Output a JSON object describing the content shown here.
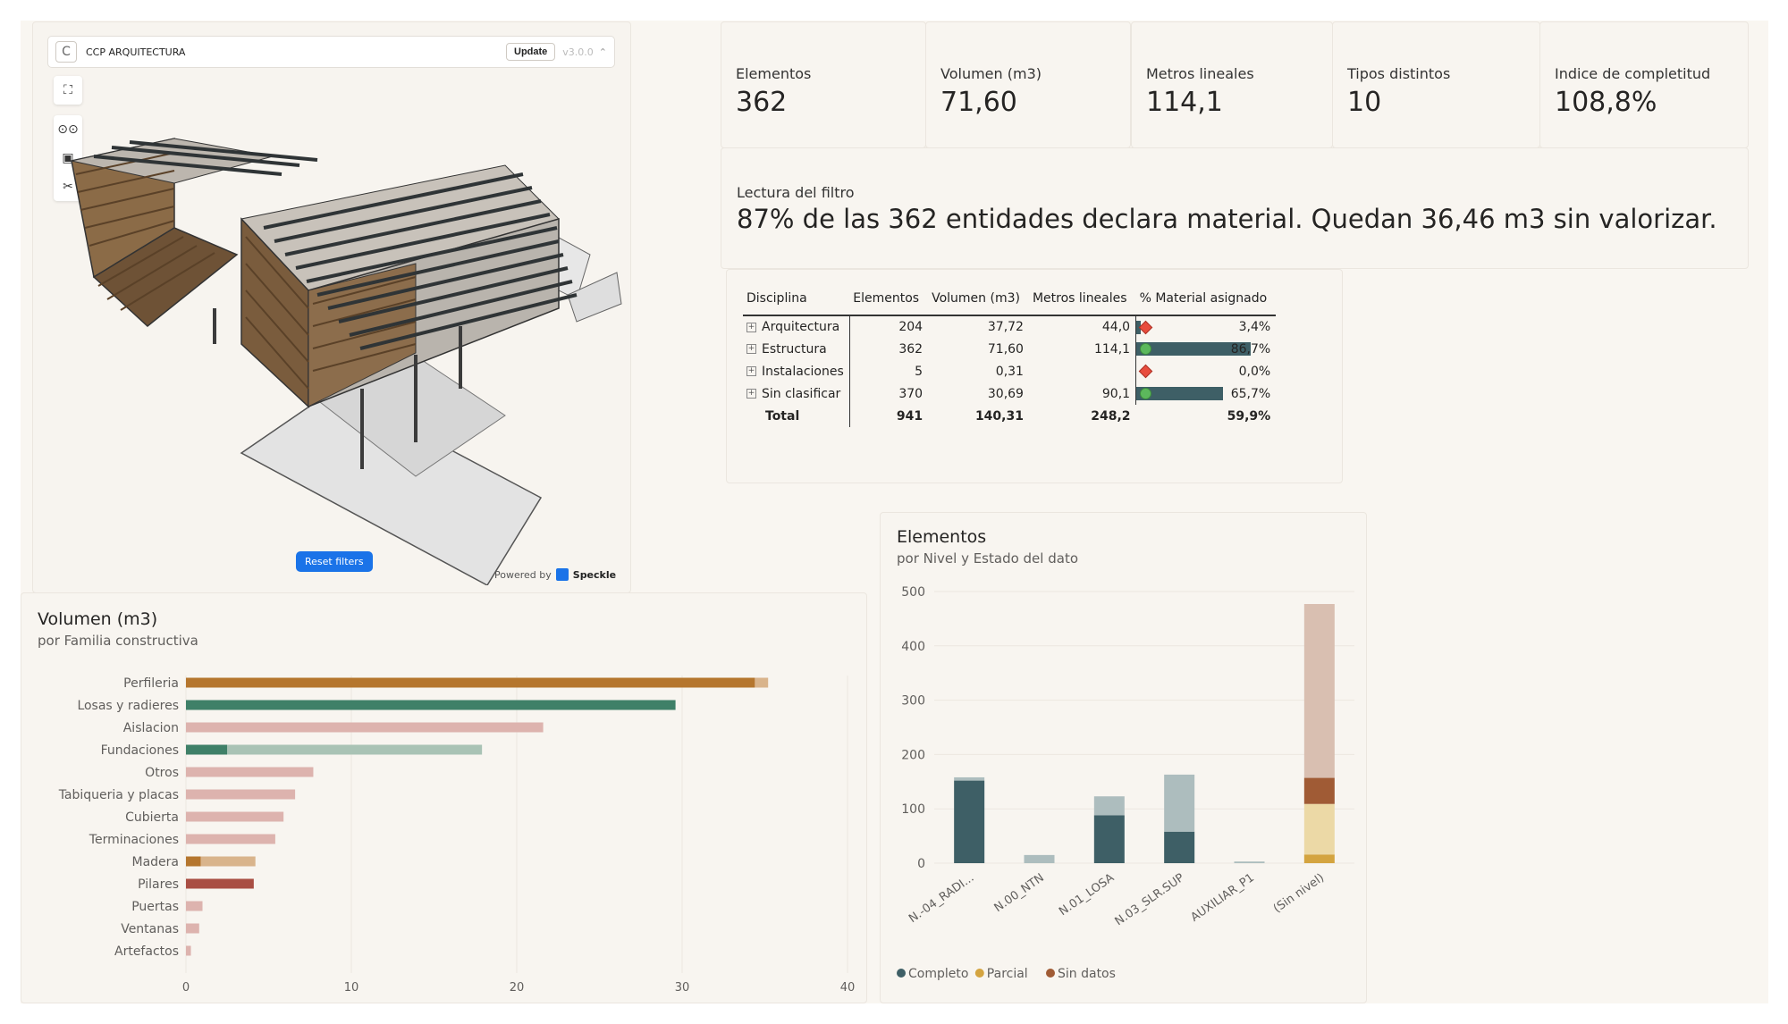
{
  "viewer": {
    "logo_letter": "C",
    "title": "CCP ARQUITECTURA",
    "update_label": "Update",
    "version": "v3.0.0",
    "reset_label": "Reset filters",
    "powered_by": "Powered by",
    "brand": "Speckle"
  },
  "kpis": [
    {
      "label": "Elementos",
      "value": "362"
    },
    {
      "label": "Volumen (m3)",
      "value": "71,60"
    },
    {
      "label": "Metros lineales",
      "value": "114,1"
    },
    {
      "label": "Tipos distintos",
      "value": "10"
    },
    {
      "label": "Indice de completitud",
      "value": "108,8%"
    }
  ],
  "reading": {
    "label": "Lectura del filtro",
    "text": "87% de las 362 entidades declara material. Quedan 36,46 m3 sin valorizar."
  },
  "matrix": {
    "headers": [
      "Disciplina",
      "Elementos",
      "Volumen (m3)",
      "Metros lineales",
      "% Material asignado"
    ],
    "rows": [
      {
        "name": "Arquitectura",
        "elementos": "204",
        "volumen": "37,72",
        "metros": "44,0",
        "pct": "3,4%",
        "pct_value": 3.4,
        "indicator": "diamond"
      },
      {
        "name": "Estructura",
        "elementos": "362",
        "volumen": "71,60",
        "metros": "114,1",
        "pct": "86,7%",
        "pct_value": 86.7,
        "indicator": "circle"
      },
      {
        "name": "Instalaciones",
        "elementos": "5",
        "volumen": "0,31",
        "metros": "",
        "pct": "0,0%",
        "pct_value": 0.0,
        "indicator": "diamond"
      },
      {
        "name": "Sin clasificar",
        "elementos": "370",
        "volumen": "30,69",
        "metros": "90,1",
        "pct": "65,7%",
        "pct_value": 65.7,
        "indicator": "circle"
      }
    ],
    "total": {
      "name": "Total",
      "elementos": "941",
      "volumen": "140,31",
      "metros": "248,2",
      "pct": "59,9%"
    },
    "bar_color": "#3e5f66"
  },
  "volumen_chart": {
    "title": "Volumen (m3)",
    "subtitle": "por Familia constructiva",
    "chart_data": {
      "type": "bar",
      "orientation": "horizontal",
      "stacked": true,
      "categories": [
        "Perfileria",
        "Losas y radieres",
        "Aislacion",
        "Fundaciones",
        "Otros",
        "Tabiqueria y placas",
        "Cubierta",
        "Terminaciones",
        "Madera",
        "Pilares",
        "Puertas",
        "Ventanas",
        "Artefactos"
      ],
      "series": [
        {
          "color": "#b5762e",
          "values": [
            34.4,
            0,
            0,
            0,
            0,
            0,
            0,
            0,
            0.9,
            0,
            0,
            0,
            0
          ]
        },
        {
          "color": "#d9b48c",
          "values": [
            0.8,
            0,
            0,
            0,
            0,
            0,
            0,
            0,
            3.3,
            0,
            0,
            0,
            0
          ]
        },
        {
          "color": "#3f8068",
          "values": [
            0,
            29.6,
            0,
            2.5,
            0,
            0,
            0,
            0,
            0,
            0,
            0,
            0,
            0
          ]
        },
        {
          "color": "#a9c3b5",
          "values": [
            0,
            0,
            0,
            15.4,
            0,
            0,
            0,
            0,
            0,
            0,
            0,
            0,
            0
          ]
        },
        {
          "color": "#ddb3ae",
          "values": [
            0,
            0,
            21.6,
            0,
            7.7,
            6.6,
            5.9,
            5.4,
            0,
            0,
            1.0,
            0.8,
            0.3
          ]
        },
        {
          "color": "#a94e43",
          "values": [
            0,
            0,
            0,
            0,
            0,
            0,
            0,
            0,
            0,
            4.1,
            0,
            0,
            0
          ]
        }
      ],
      "xlim": [
        0,
        40
      ],
      "xticks": [
        "0",
        "10",
        "20",
        "30",
        "40"
      ]
    }
  },
  "elementos_chart": {
    "title": "Elementos",
    "subtitle": "por Nivel y Estado del dato",
    "chart_data": {
      "type": "bar",
      "stacked": true,
      "categories": [
        "N.-04_RADI...",
        "N.00_NTN",
        "N.01_LOSA",
        "N.03_SLR.SUP",
        "AUXILIAR_P1",
        "(Sin nivel)"
      ],
      "series": [
        {
          "name": "Completo",
          "color": "#3e5f66",
          "values": [
            152,
            0,
            88,
            58,
            0,
            0
          ]
        },
        {
          "name": "Completo",
          "color": "#adbdbe",
          "values": [
            6,
            15,
            35,
            105,
            3,
            0
          ]
        },
        {
          "name": "Parcial",
          "color": "#d4a440",
          "values": [
            0,
            0,
            0,
            0,
            0,
            16
          ]
        },
        {
          "name": "Parcial",
          "color": "#ecd9a6",
          "values": [
            0,
            0,
            0,
            0,
            0,
            93
          ]
        },
        {
          "name": "Sin datos",
          "color": "#a05b35",
          "values": [
            0,
            0,
            0,
            0,
            0,
            48
          ]
        },
        {
          "name": "Sin datos",
          "color": "#d9bfb1",
          "values": [
            0,
            0,
            0,
            0,
            0,
            320
          ]
        }
      ],
      "ylim": [
        0,
        500
      ],
      "yticks": [
        "0",
        "100",
        "200",
        "300",
        "400",
        "500"
      ],
      "legend": [
        {
          "name": "Completo",
          "color": "#3e5f66"
        },
        {
          "name": "Parcial",
          "color": "#d4a440"
        },
        {
          "name": "Sin datos",
          "color": "#a05b35"
        }
      ],
      "legend_position": "bottom-left"
    }
  }
}
